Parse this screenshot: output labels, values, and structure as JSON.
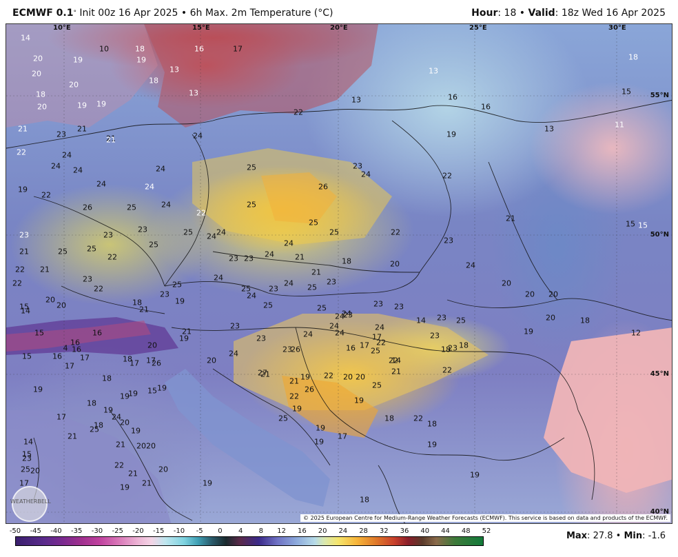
{
  "header": {
    "model": "ECMWF 0.1",
    "init": "Init 00z 16 Apr 2025",
    "product": "6h Max. 2m Temperature (°C)",
    "hour_label": "Hour",
    "hour_value": "18",
    "valid_label": "Valid",
    "valid_value": "18z Wed 16 Apr 2025"
  },
  "axes": {
    "lon": [
      "10°E",
      "15°E",
      "20°E",
      "25°E",
      "30°E"
    ],
    "lat": [
      "55°N",
      "50°N",
      "45°N",
      "40°N"
    ]
  },
  "copyright": "© 2025 European Centre for Medium-Range Weather Forecasts (ECMWF). This service is based on data and products of the ECMWF.",
  "logo": "WEATHERBELL",
  "colorbar": {
    "ticks": [
      "-50",
      "-45",
      "-40",
      "-35",
      "-30",
      "-25",
      "-20",
      "-15",
      "-10",
      "-5",
      "0",
      "4",
      "8",
      "12",
      "16",
      "20",
      "24",
      "28",
      "32",
      "36",
      "40",
      "44",
      "48",
      "52"
    ],
    "unit": "°C"
  },
  "stats": {
    "max_label": "Max",
    "max_value": "27.8",
    "min_label": "Min",
    "min_value": "-1.6"
  },
  "colors": {
    "cold_blue": "#7985c4",
    "warm_yellow": "#f0cf52",
    "hot_orange": "#f0a830",
    "north_red": "#b9474f",
    "sea_pink": "#efb0b4"
  },
  "temps": [
    {
      "v": "14"
    },
    {
      "v": "20"
    },
    {
      "v": "10"
    },
    {
      "v": "18"
    },
    {
      "v": "16"
    },
    {
      "v": "17"
    },
    {
      "v": "20"
    },
    {
      "v": "19"
    },
    {
      "v": "19"
    },
    {
      "v": "18"
    },
    {
      "v": "13"
    },
    {
      "v": "20"
    },
    {
      "v": "18"
    },
    {
      "v": "13"
    },
    {
      "v": "20"
    },
    {
      "v": "19"
    },
    {
      "v": "19"
    },
    {
      "v": "13"
    },
    {
      "v": "16"
    },
    {
      "v": "16"
    },
    {
      "v": "18"
    },
    {
      "v": "15"
    },
    {
      "v": "13"
    },
    {
      "v": "11"
    },
    {
      "v": "22"
    },
    {
      "v": "21"
    },
    {
      "v": "23"
    },
    {
      "v": "21"
    },
    {
      "v": "21"
    },
    {
      "v": "24"
    },
    {
      "v": "19"
    },
    {
      "v": "22"
    },
    {
      "v": "24"
    },
    {
      "v": "21"
    },
    {
      "v": "24"
    },
    {
      "v": "24"
    },
    {
      "v": "24"
    },
    {
      "v": "25"
    },
    {
      "v": "23"
    },
    {
      "v": "24"
    },
    {
      "v": "26"
    },
    {
      "v": "22"
    },
    {
      "v": "13"
    },
    {
      "v": "19"
    },
    {
      "v": "22"
    },
    {
      "v": "24"
    },
    {
      "v": "24"
    },
    {
      "v": "24"
    },
    {
      "v": "25"
    },
    {
      "v": "25"
    },
    {
      "v": "26"
    },
    {
      "v": "25"
    },
    {
      "v": "22"
    },
    {
      "v": "21"
    },
    {
      "v": "15"
    },
    {
      "v": "15"
    },
    {
      "v": "23"
    },
    {
      "v": "23"
    },
    {
      "v": "25"
    },
    {
      "v": "24"
    },
    {
      "v": "24"
    },
    {
      "v": "25"
    },
    {
      "v": "25"
    },
    {
      "v": "22"
    },
    {
      "v": "23"
    },
    {
      "v": "23"
    },
    {
      "v": "21"
    },
    {
      "v": "25"
    },
    {
      "v": "22"
    },
    {
      "v": "25"
    },
    {
      "v": "24"
    },
    {
      "v": "23"
    },
    {
      "v": "23"
    },
    {
      "v": "24"
    },
    {
      "v": "21"
    },
    {
      "v": "22"
    },
    {
      "v": "18"
    },
    {
      "v": "20"
    },
    {
      "v": "24"
    },
    {
      "v": "22"
    },
    {
      "v": "23"
    },
    {
      "v": "21"
    },
    {
      "v": "22"
    },
    {
      "v": "25"
    },
    {
      "v": "24"
    },
    {
      "v": "25"
    },
    {
      "v": "23"
    },
    {
      "v": "21"
    },
    {
      "v": "23"
    },
    {
      "v": "20"
    },
    {
      "v": "20"
    },
    {
      "v": "23"
    },
    {
      "v": "20"
    },
    {
      "v": "15"
    },
    {
      "v": "20"
    },
    {
      "v": "18"
    },
    {
      "v": "19"
    },
    {
      "v": "25"
    },
    {
      "v": "24"
    },
    {
      "v": "25"
    },
    {
      "v": "24"
    },
    {
      "v": "25"
    },
    {
      "v": "23"
    },
    {
      "v": "20"
    },
    {
      "v": "20"
    },
    {
      "v": "21"
    },
    {
      "v": "14"
    },
    {
      "v": "21"
    },
    {
      "v": "23"
    },
    {
      "v": "23"
    },
    {
      "v": "24"
    },
    {
      "v": "23"
    },
    {
      "v": "23"
    },
    {
      "v": "18"
    },
    {
      "v": "15"
    },
    {
      "v": "16"
    },
    {
      "v": "4"
    },
    {
      "v": "16"
    },
    {
      "v": "16"
    },
    {
      "v": "19"
    },
    {
      "v": "20"
    },
    {
      "v": "23"
    },
    {
      "v": "24"
    },
    {
      "v": "24"
    },
    {
      "v": "25"
    },
    {
      "v": "19"
    },
    {
      "v": "12"
    },
    {
      "v": "15"
    },
    {
      "v": "16"
    },
    {
      "v": "17"
    },
    {
      "v": "18"
    },
    {
      "v": "17"
    },
    {
      "v": "24"
    },
    {
      "v": "24"
    },
    {
      "v": "24"
    },
    {
      "v": "23"
    },
    {
      "v": "23"
    },
    {
      "v": "17"
    },
    {
      "v": "18"
    },
    {
      "v": "27"
    },
    {
      "v": "26"
    },
    {
      "v": "24"
    },
    {
      "v": "22"
    },
    {
      "v": "14"
    },
    {
      "v": "17"
    },
    {
      "v": "18"
    },
    {
      "v": "19"
    },
    {
      "v": "17"
    },
    {
      "v": "26"
    },
    {
      "v": "21"
    },
    {
      "v": "21"
    },
    {
      "v": "16"
    },
    {
      "v": "19"
    },
    {
      "v": "18"
    },
    {
      "v": "17"
    },
    {
      "v": "19"
    },
    {
      "v": "19"
    },
    {
      "v": "20"
    },
    {
      "v": "26"
    },
    {
      "v": "22"
    },
    {
      "v": "17"
    },
    {
      "v": "19"
    },
    {
      "v": "20"
    },
    {
      "v": "21"
    },
    {
      "v": "25"
    },
    {
      "v": "24"
    },
    {
      "v": "15"
    },
    {
      "v": "19"
    },
    {
      "v": "20"
    },
    {
      "v": "20"
    },
    {
      "v": "22"
    },
    {
      "v": "25"
    },
    {
      "v": "22"
    },
    {
      "v": "14"
    },
    {
      "v": "15"
    },
    {
      "v": "19"
    },
    {
      "v": "20"
    },
    {
      "v": "25"
    },
    {
      "v": "23"
    },
    {
      "v": "18"
    },
    {
      "v": "14"
    },
    {
      "v": "21"
    },
    {
      "v": "22"
    },
    {
      "v": "23"
    },
    {
      "v": "25"
    },
    {
      "v": "18"
    },
    {
      "v": "21"
    },
    {
      "v": "20"
    },
    {
      "v": "19"
    },
    {
      "v": "19"
    },
    {
      "v": "17"
    },
    {
      "v": "22"
    },
    {
      "v": "21"
    },
    {
      "v": "20"
    },
    {
      "v": "25"
    },
    {
      "v": "19"
    },
    {
      "v": "18"
    },
    {
      "v": "22"
    },
    {
      "v": "19"
    },
    {
      "v": "18"
    },
    {
      "v": "20"
    },
    {
      "v": "19"
    },
    {
      "v": "21"
    },
    {
      "v": "19"
    },
    {
      "v": "17"
    },
    {
      "v": "19"
    },
    {
      "v": "18"
    },
    {
      "v": "19"
    }
  ]
}
